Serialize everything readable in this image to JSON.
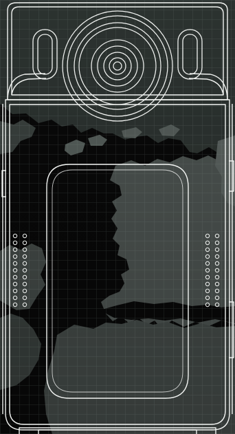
{
  "colors": {
    "background": "#0a0a0a",
    "land": "#5a625f",
    "land_dark": "#2f3633",
    "grid": "#8d9692",
    "outline": "#f2f4f2"
  },
  "icons": [
    "camera-lens-icon",
    "left-indicator-light-icon",
    "right-indicator-light-icon",
    "speaker-grille-icon"
  ],
  "device": {
    "type": "body-camera-outline",
    "speaker_hole_rows": 12,
    "speaker_hole_columns": 2
  }
}
